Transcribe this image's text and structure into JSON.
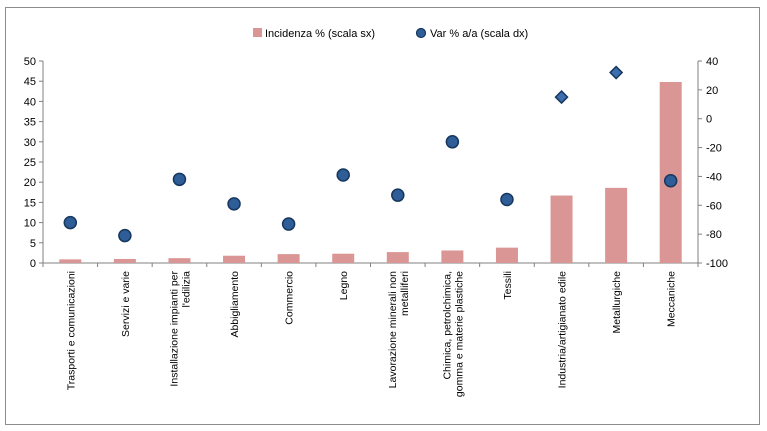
{
  "chart_data": {
    "type": "bar",
    "categories": [
      [
        "Trasporti e comunicazioni"
      ],
      [
        "Servizi e varie"
      ],
      [
        "Installazione impianti per",
        "l'edilizia"
      ],
      [
        "Abbigliamento"
      ],
      [
        "Commercio"
      ],
      [
        "Legno"
      ],
      [
        "Lavorazione minerali non",
        "metalliferi"
      ],
      [
        "Chimica, petrolchimica,",
        "gomma e materie plastiche"
      ],
      [
        "Tessili"
      ],
      [
        "Industria/artigianato edile"
      ],
      [
        "Metallurgiche"
      ],
      [
        "Meccaniche"
      ]
    ],
    "series": [
      {
        "name": "Incidenza % (scala sx)",
        "type": "bar",
        "axis": "left",
        "color": "#d99694",
        "values": [
          0.9,
          1.0,
          1.2,
          1.8,
          2.2,
          2.3,
          2.7,
          3.1,
          3.8,
          16.7,
          18.6,
          44.8
        ]
      },
      {
        "name": "Var % a/a (scala dx)",
        "type": "scatter",
        "axis": "right",
        "color": "#1f4e79",
        "markers": [
          "circle",
          "circle",
          "circle",
          "circle",
          "circle",
          "circle",
          "circle",
          "circle",
          "circle",
          "diamond",
          "diamond",
          "circle"
        ],
        "values": [
          -72,
          -81,
          -42,
          -59,
          -73,
          -39,
          -53,
          -16,
          -56,
          15,
          32,
          -43
        ]
      }
    ],
    "y_left": {
      "min": 0,
      "max": 50,
      "ticks": [
        "0",
        "5",
        "10",
        "15",
        "20",
        "25",
        "30",
        "35",
        "40",
        "45",
        "50"
      ]
    },
    "y_right": {
      "min": -100,
      "max": 40,
      "ticks": [
        "-100",
        "-80",
        "-60",
        "-40",
        "-20",
        "0",
        "20",
        "40"
      ]
    },
    "grid": false,
    "legend": "top-center"
  }
}
